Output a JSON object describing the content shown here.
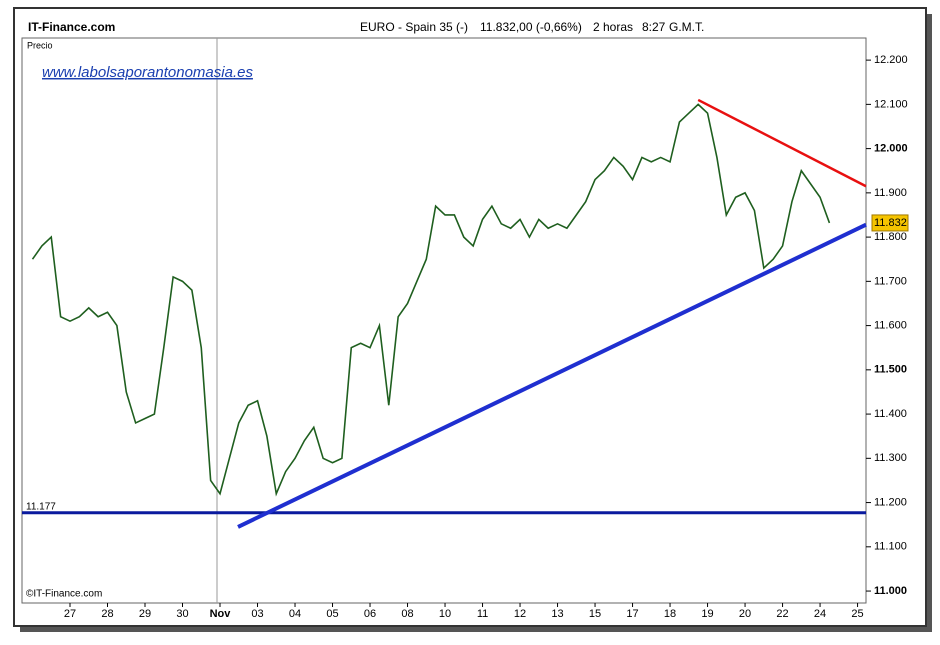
{
  "chart_data": {
    "type": "line",
    "source": "IT-Finance.com",
    "title": "EURO - Spain 35 (-)",
    "quote": "11.832,00 (-0,66%)",
    "delay": "2 horas",
    "time": "8:27",
    "timezone": "G.M.T.",
    "y_label": "Precio",
    "watermark": "www.labolsaporantonomasia.es",
    "copyright": "©IT-Finance.com",
    "series": [
      {
        "color": "#1f5f1f",
        "values": [
          11.75,
          11.78,
          11.8,
          11.62,
          11.61,
          11.62,
          11.64,
          11.62,
          11.63,
          11.6,
          11.45,
          11.38,
          11.39,
          11.4,
          11.55,
          11.71,
          11.7,
          11.68,
          11.55,
          11.25,
          11.22,
          11.3,
          11.38,
          11.42,
          11.43,
          11.35,
          11.22,
          11.27,
          11.3,
          11.34,
          11.37,
          11.3,
          11.29,
          11.3,
          11.55,
          11.56,
          11.55,
          11.6,
          11.42,
          11.62,
          11.65,
          11.7,
          11.75,
          11.87,
          11.85,
          11.85,
          11.8,
          11.78,
          11.84,
          11.87,
          11.83,
          11.82,
          11.84,
          11.8,
          11.84,
          11.82,
          11.83,
          11.82,
          11.85,
          11.88,
          11.93,
          11.95,
          11.98,
          11.96,
          11.93,
          11.98,
          11.97,
          11.98,
          11.97,
          12.06,
          12.08,
          12.1,
          12.08,
          11.98,
          11.85,
          11.89,
          11.9,
          11.86,
          11.73,
          11.75,
          11.78,
          11.88,
          11.95,
          11.92,
          11.89,
          11.832
        ]
      }
    ],
    "last_value": {
      "value": 11.832,
      "label": "11.832"
    },
    "hline": {
      "value": 11.177,
      "label": "11.177",
      "color": "#0a1a9e"
    },
    "trend_lines": [
      {
        "color": "#1f2fd0",
        "x": [
          21.92,
          88.9
        ],
        "y": [
          11.145,
          11.828
        ]
      },
      {
        "color": "#e81010",
        "x": [
          71.0,
          88.9
        ],
        "y": [
          12.11,
          11.915
        ]
      }
    ],
    "xlim": [
      -1.12,
      88.9
    ],
    "xticks": [
      {
        "value": 4,
        "label": "27"
      },
      {
        "value": 8,
        "label": "28"
      },
      {
        "value": 12,
        "label": "29"
      },
      {
        "value": 16,
        "label": "30"
      },
      {
        "value": 20,
        "label": "Nov"
      },
      {
        "value": 24,
        "label": "03"
      },
      {
        "value": 28,
        "label": "04"
      },
      {
        "value": 32,
        "label": "05"
      },
      {
        "value": 36,
        "label": "06"
      },
      {
        "value": 40,
        "label": "08"
      },
      {
        "value": 44,
        "label": "10"
      },
      {
        "value": 48,
        "label": "11"
      },
      {
        "value": 52,
        "label": "12"
      },
      {
        "value": 56,
        "label": "13"
      },
      {
        "value": 60,
        "label": "15"
      },
      {
        "value": 64,
        "label": "17"
      },
      {
        "value": 68,
        "label": "18"
      },
      {
        "value": 72,
        "label": "19"
      },
      {
        "value": 76,
        "label": "20"
      },
      {
        "value": 80,
        "label": "22"
      },
      {
        "value": 84,
        "label": "24"
      },
      {
        "value": 88,
        "label": "25"
      }
    ],
    "ylim": [
      10.973,
      12.25
    ],
    "yticks": [
      {
        "value": 11.0,
        "label": "11.000"
      },
      {
        "value": 11.1,
        "label": "11.100"
      },
      {
        "value": 11.2,
        "label": "11.200"
      },
      {
        "value": 11.3,
        "label": "11.300"
      },
      {
        "value": 11.4,
        "label": "11.400"
      },
      {
        "value": 11.5,
        "label": "11.500"
      },
      {
        "value": 11.6,
        "label": "11.600"
      },
      {
        "value": 11.7,
        "label": "11.700"
      },
      {
        "value": 11.8,
        "label": "11.800"
      },
      {
        "value": 11.9,
        "label": "11.900"
      },
      {
        "value": 12.0,
        "label": "12.000"
      },
      {
        "value": 12.1,
        "label": "12.100"
      },
      {
        "value": 12.2,
        "label": "12.200"
      }
    ]
  }
}
